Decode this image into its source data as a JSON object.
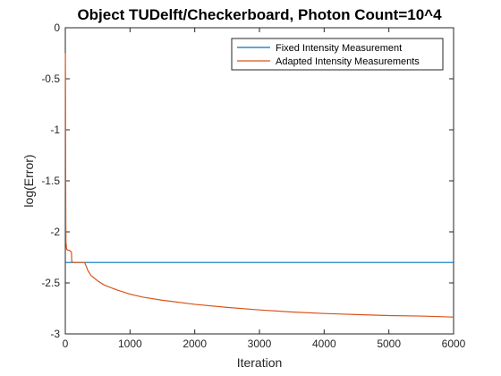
{
  "chart_data": {
    "type": "line",
    "title": "Object TUDelft/Checkerboard, Photon Count=10^4",
    "xlabel": "Iteration",
    "ylabel": "log(Error)",
    "xlim": [
      0,
      6000
    ],
    "ylim": [
      -3,
      0
    ],
    "xticks": [
      "0",
      "1000",
      "2000",
      "3000",
      "4000",
      "5000",
      "6000"
    ],
    "yticks": [
      "0",
      "-0.5",
      "-1",
      "-1.5",
      "-2",
      "-2.5",
      "-3"
    ],
    "grid": false,
    "legend_position": "top-right",
    "series": [
      {
        "name": "Fixed Intensity Measurement",
        "color": "#0072BD",
        "x": [
          1,
          6000
        ],
        "y": [
          -2.3,
          -2.3
        ]
      },
      {
        "name": "Adapted Intensity Measurements",
        "color": "#D95319",
        "x": [
          1,
          3,
          5,
          8,
          10,
          20,
          40,
          60,
          80,
          95,
          100,
          120,
          150,
          200,
          250,
          300,
          350,
          400,
          500,
          600,
          800,
          1000,
          1200,
          1500,
          2000,
          2500,
          3000,
          3500,
          4000,
          4500,
          5000,
          5500,
          6000
        ],
        "y": [
          -0.25,
          -0.6,
          -1.3,
          -1.9,
          -2.1,
          -2.17,
          -2.18,
          -2.18,
          -2.19,
          -2.2,
          -2.29,
          -2.3,
          -2.3,
          -2.3,
          -2.3,
          -2.3,
          -2.38,
          -2.43,
          -2.48,
          -2.52,
          -2.57,
          -2.61,
          -2.64,
          -2.67,
          -2.71,
          -2.74,
          -2.765,
          -2.785,
          -2.8,
          -2.81,
          -2.82,
          -2.825,
          -2.835
        ]
      }
    ]
  }
}
